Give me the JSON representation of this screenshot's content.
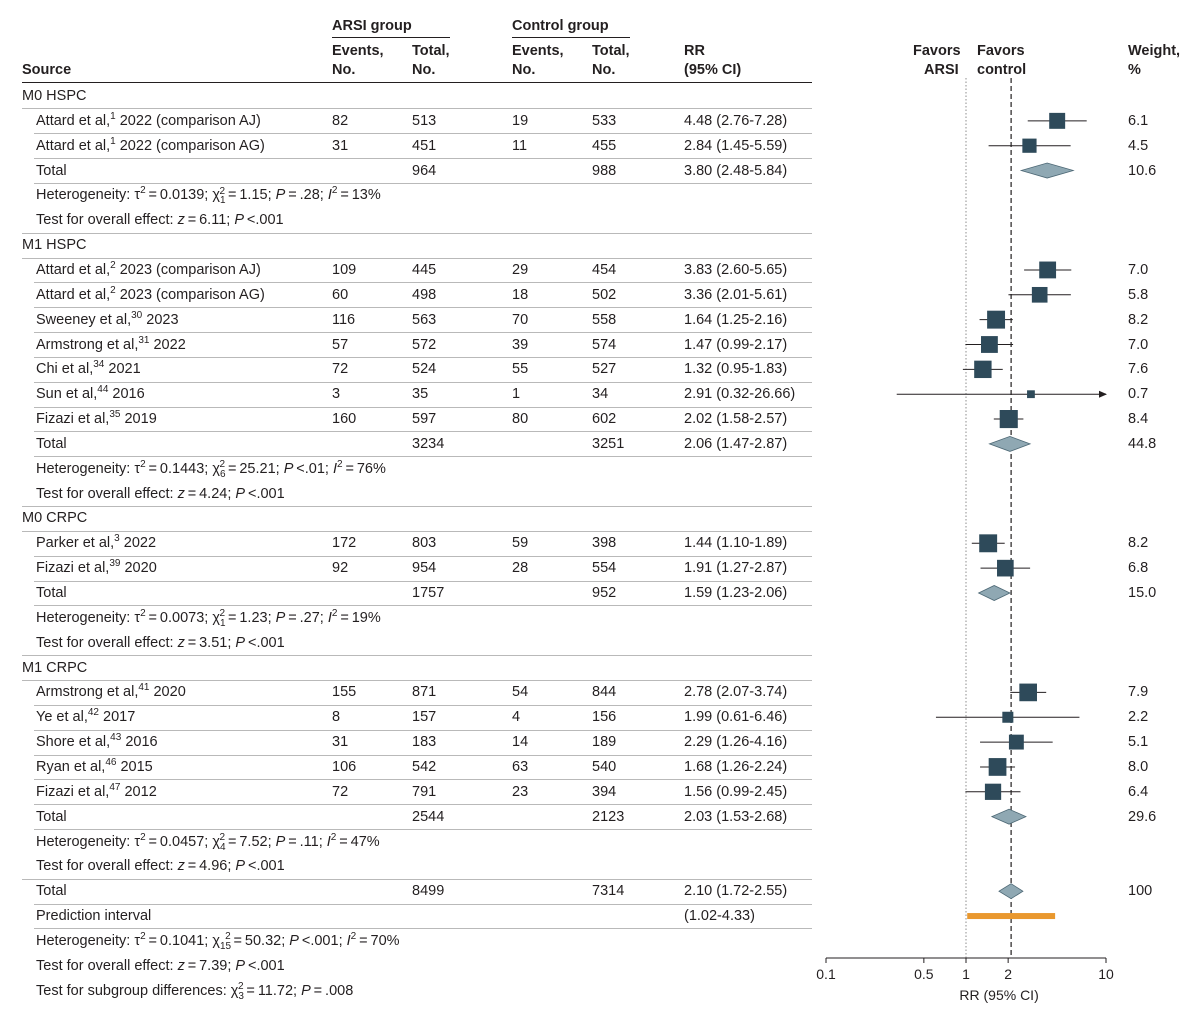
{
  "header": {
    "source": "Source",
    "arsi_group": "ARSI group",
    "control_group": "Control group",
    "events_l1": "Events,",
    "events_l2": "No.",
    "total_l1": "Total,",
    "total_l2": "No.",
    "rr_l1": "RR",
    "rr_l2": "(95% CI)",
    "favors_arsi_l1": "Favors",
    "favors_arsi_l2": "ARSI",
    "favors_control_l1": "Favors",
    "favors_control_l2": "control",
    "weight_l1": "Weight,",
    "weight_l2": "%"
  },
  "rows": [
    {
      "kind": "section",
      "label": "M0 HSPC"
    },
    {
      "kind": "study",
      "author": "Attard et al,",
      "ref": "1",
      "year": " 2022 (comparison AJ)",
      "e1": "82",
      "n1": "513",
      "e2": "19",
      "n2": "533",
      "rr": "4.48 (2.76-7.28)",
      "weight": "6.1"
    },
    {
      "kind": "study",
      "author": "Attard et al,",
      "ref": "1",
      "year": " 2022 (comparison AG)",
      "e1": "31",
      "n1": "451",
      "e2": "11",
      "n2": "455",
      "rr": "2.84 (1.45-5.59)",
      "weight": "4.5"
    },
    {
      "kind": "total",
      "label": "Total",
      "n1": "964",
      "n2": "988",
      "rr": "3.80 (2.48-5.84)",
      "weight": "10.6"
    },
    {
      "kind": "het",
      "tau": "0.0139",
      "df": "1",
      "chi": "1.15",
      "p": ".28",
      "i2": "13%"
    },
    {
      "kind": "test",
      "z": "6.11",
      "p": "<.001"
    },
    {
      "kind": "section",
      "label": "M1 HSPC"
    },
    {
      "kind": "study",
      "author": "Attard et al,",
      "ref": "2",
      "year": " 2023 (comparison AJ)",
      "e1": "109",
      "n1": "445",
      "e2": "29",
      "n2": "454",
      "rr": "3.83 (2.60-5.65)",
      "weight": "7.0"
    },
    {
      "kind": "study",
      "author": "Attard et al,",
      "ref": "2",
      "year": " 2023 (comparison AG)",
      "e1": "60",
      "n1": "498",
      "e2": "18",
      "n2": "502",
      "rr": "3.36 (2.01-5.61)",
      "weight": "5.8"
    },
    {
      "kind": "study",
      "author": "Sweeney et al,",
      "ref": "30",
      "year": " 2023",
      "e1": "116",
      "n1": "563",
      "e2": "70",
      "n2": "558",
      "rr": "1.64 (1.25-2.16)",
      "weight": "8.2"
    },
    {
      "kind": "study",
      "author": "Armstrong et al,",
      "ref": "31",
      "year": " 2022",
      "e1": "57",
      "n1": "572",
      "e2": "39",
      "n2": "574",
      "rr": "1.47 (0.99-2.17)",
      "weight": "7.0"
    },
    {
      "kind": "study",
      "author": "Chi et al,",
      "ref": "34",
      "year": " 2021",
      "e1": "72",
      "n1": "524",
      "e2": "55",
      "n2": "527",
      "rr": "1.32 (0.95-1.83)",
      "weight": "7.6"
    },
    {
      "kind": "study",
      "author": "Sun et al,",
      "ref": "44",
      "year": " 2016",
      "e1": "3",
      "n1": "35",
      "e2": "1",
      "n2": "34",
      "rr": "2.91 (0.32-26.66)",
      "weight": "0.7"
    },
    {
      "kind": "study",
      "author": "Fizazi et al,",
      "ref": "35",
      "year": " 2019",
      "e1": "160",
      "n1": "597",
      "e2": "80",
      "n2": "602",
      "rr": "2.02 (1.58-2.57)",
      "weight": "8.4"
    },
    {
      "kind": "total",
      "label": "Total",
      "n1": "3234",
      "n2": "3251",
      "rr": "2.06 (1.47-2.87)",
      "weight": "44.8"
    },
    {
      "kind": "het",
      "tau": "0.1443",
      "df": "6",
      "chi": "25.21",
      "p": "<.01",
      "i2": "76%"
    },
    {
      "kind": "test",
      "z": "4.24",
      "p": "<.001"
    },
    {
      "kind": "section",
      "label": "M0 CRPC"
    },
    {
      "kind": "study",
      "author": "Parker et al,",
      "ref": "3",
      "year": " 2022",
      "e1": "172",
      "n1": "803",
      "e2": "59",
      "n2": "398",
      "rr": "1.44 (1.10-1.89)",
      "weight": "8.2"
    },
    {
      "kind": "study",
      "author": "Fizazi et al,",
      "ref": "39",
      "year": " 2020",
      "e1": "92",
      "n1": "954",
      "e2": "28",
      "n2": "554",
      "rr": "1.91 (1.27-2.87)",
      "weight": "6.8"
    },
    {
      "kind": "total",
      "label": "Total",
      "n1": "1757",
      "n2": "952",
      "rr": "1.59 (1.23-2.06)",
      "weight": "15.0"
    },
    {
      "kind": "het",
      "tau": "0.0073",
      "df": "1",
      "chi": "1.23",
      "p": ".27",
      "i2": "19%"
    },
    {
      "kind": "test",
      "z": "3.51",
      "p": "<.001"
    },
    {
      "kind": "section",
      "label": "M1 CRPC"
    },
    {
      "kind": "study",
      "author": "Armstrong et al,",
      "ref": "41",
      "year": " 2020",
      "e1": "155",
      "n1": "871",
      "e2": "54",
      "n2": "844",
      "rr": "2.78 (2.07-3.74)",
      "weight": "7.9"
    },
    {
      "kind": "study",
      "author": "Ye et al,",
      "ref": "42",
      "year": " 2017",
      "e1": "8",
      "n1": "157",
      "e2": "4",
      "n2": "156",
      "rr": "1.99 (0.61-6.46)",
      "weight": "2.2"
    },
    {
      "kind": "study",
      "author": "Shore et al,",
      "ref": "43",
      "year": " 2016",
      "e1": "31",
      "n1": "183",
      "e2": "14",
      "n2": "189",
      "rr": "2.29 (1.26-4.16)",
      "weight": "5.1"
    },
    {
      "kind": "study",
      "author": "Ryan et al,",
      "ref": "46",
      "year": " 2015",
      "e1": "106",
      "n1": "542",
      "e2": "63",
      "n2": "540",
      "rr": "1.68 (1.26-2.24)",
      "weight": "8.0"
    },
    {
      "kind": "study",
      "author": "Fizazi et al,",
      "ref": "47",
      "year": " 2012",
      "e1": "72",
      "n1": "791",
      "e2": "23",
      "n2": "394",
      "rr": "1.56 (0.99-2.45)",
      "weight": "6.4"
    },
    {
      "kind": "total",
      "label": "Total",
      "n1": "2544",
      "n2": "2123",
      "rr": "2.03 (1.53-2.68)",
      "weight": "29.6"
    },
    {
      "kind": "het",
      "tau": "0.0457",
      "df": "4",
      "chi": "7.52",
      "p": ".11",
      "i2": "47%"
    },
    {
      "kind": "test",
      "z": "4.96",
      "p": "<.001"
    },
    {
      "kind": "total",
      "label": "Total",
      "n1": "8499",
      "n2": "7314",
      "rr": "2.10 (1.72-2.55)",
      "weight": "100"
    },
    {
      "kind": "pred",
      "label": "Prediction interval",
      "rr": "(1.02-4.33)"
    },
    {
      "kind": "het",
      "tau": "0.1041",
      "df": "15",
      "chi": "50.32",
      "p": "<.001",
      "i2": "70%"
    },
    {
      "kind": "test",
      "z": "7.39",
      "p": "<.001"
    },
    {
      "kind": "subgroup",
      "df": "3",
      "chi": "11.72",
      "p": ".008"
    }
  ],
  "chart_data": {
    "type": "forest",
    "scale": "log",
    "xlim": [
      0.1,
      10
    ],
    "xticks": [
      0.1,
      0.5,
      1,
      2,
      10
    ],
    "tick_labels": [
      "0.1",
      "0.5",
      "1",
      "2",
      "10"
    ],
    "xlabel": "RR (95% CI)",
    "null_line": 1,
    "pooled_line": 2.1,
    "colors": {
      "square": "#2e4a5a",
      "diamond": "#8fa8b3",
      "prediction": "#e9982e",
      "axis": "#231f20"
    },
    "studies": [
      {
        "rr": 4.48,
        "lo": 2.76,
        "hi": 7.28,
        "w": 6.1
      },
      {
        "rr": 2.84,
        "lo": 1.45,
        "hi": 5.59,
        "w": 4.5
      },
      {
        "rr": 3.83,
        "lo": 2.6,
        "hi": 5.65,
        "w": 7.0
      },
      {
        "rr": 3.36,
        "lo": 2.01,
        "hi": 5.61,
        "w": 5.8
      },
      {
        "rr": 1.64,
        "lo": 1.25,
        "hi": 2.16,
        "w": 8.2
      },
      {
        "rr": 1.47,
        "lo": 0.99,
        "hi": 2.17,
        "w": 7.0
      },
      {
        "rr": 1.32,
        "lo": 0.95,
        "hi": 1.83,
        "w": 7.6
      },
      {
        "rr": 2.91,
        "lo": 0.32,
        "hi": 26.66,
        "w": 0.7
      },
      {
        "rr": 2.02,
        "lo": 1.58,
        "hi": 2.57,
        "w": 8.4
      },
      {
        "rr": 1.44,
        "lo": 1.1,
        "hi": 1.89,
        "w": 8.2
      },
      {
        "rr": 1.91,
        "lo": 1.27,
        "hi": 2.87,
        "w": 6.8
      },
      {
        "rr": 2.78,
        "lo": 2.07,
        "hi": 3.74,
        "w": 7.9
      },
      {
        "rr": 1.99,
        "lo": 0.61,
        "hi": 6.46,
        "w": 2.2
      },
      {
        "rr": 2.29,
        "lo": 1.26,
        "hi": 4.16,
        "w": 5.1
      },
      {
        "rr": 1.68,
        "lo": 1.26,
        "hi": 2.24,
        "w": 8.0
      },
      {
        "rr": 1.56,
        "lo": 0.99,
        "hi": 2.45,
        "w": 6.4
      }
    ],
    "subtotals": [
      {
        "rr": 3.8,
        "lo": 2.48,
        "hi": 5.84
      },
      {
        "rr": 2.06,
        "lo": 1.47,
        "hi": 2.87
      },
      {
        "rr": 1.59,
        "lo": 1.23,
        "hi": 2.06
      },
      {
        "rr": 2.03,
        "lo": 1.53,
        "hi": 2.68
      }
    ],
    "overall": {
      "rr": 2.1,
      "lo": 1.72,
      "hi": 2.55
    },
    "prediction_interval": {
      "lo": 1.02,
      "hi": 4.33
    }
  }
}
